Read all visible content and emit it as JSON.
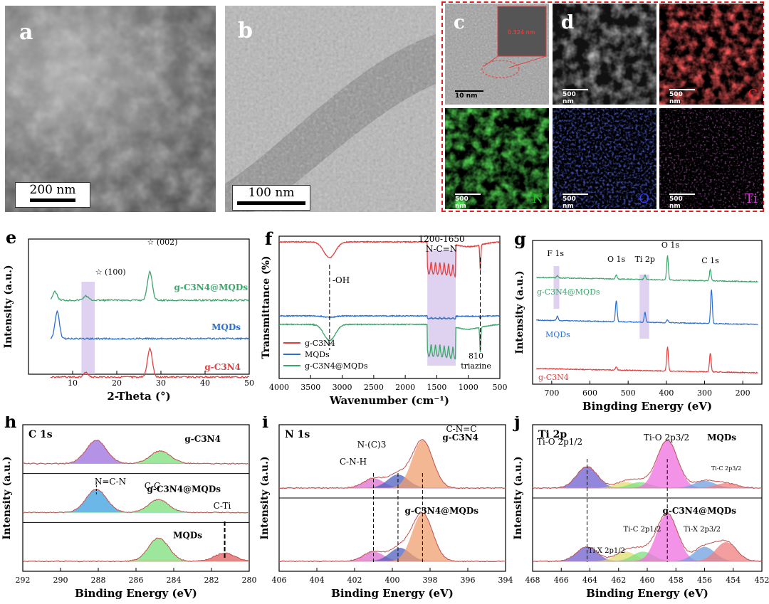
{
  "panels": {
    "a": {
      "label": "a",
      "scale": "200 nm"
    },
    "b": {
      "label": "b",
      "scale": "100 nm"
    },
    "c": {
      "label": "c",
      "scale": "10 nm",
      "lattice": "0.324 nm"
    },
    "d": {
      "label": "d",
      "scale": "500 nm"
    },
    "maps": [
      {
        "scale": "500 nm",
        "element": "C",
        "color": "#ff2020"
      },
      {
        "scale": "500 nm",
        "element": "N",
        "color": "#20c020"
      },
      {
        "scale": "500 nm",
        "element": "O",
        "color": "#3040ff"
      },
      {
        "scale": "500 nm",
        "element": "Ti",
        "color": "#d040d0"
      }
    ]
  },
  "chart_data": [
    {
      "id": "e",
      "type": "line",
      "panel_label": "e",
      "xlabel": "2-Theta (°)",
      "ylabel": "Intensity (a.u.)",
      "xlim": [
        0,
        50
      ],
      "xticks": [
        10,
        20,
        30,
        40,
        50
      ],
      "series": [
        {
          "name": "g-C3N4@MQDs",
          "color": "#3aa66a",
          "peaks": [
            [
              6,
              0.3
            ],
            [
              13,
              0.15
            ],
            [
              27.5,
              1.0
            ]
          ]
        },
        {
          "name": "MQDs",
          "color": "#2a6fd0",
          "peaks": [
            [
              6.5,
              1.0
            ]
          ]
        },
        {
          "name": "g-C3N4",
          "color": "#e04040",
          "peaks": [
            [
              13,
              0.15
            ],
            [
              27.5,
              1.0
            ]
          ]
        }
      ],
      "annotations": [
        "(100)",
        "(002)"
      ]
    },
    {
      "id": "f",
      "type": "line",
      "panel_label": "f",
      "xlabel": "Wavenumber (cm⁻¹)",
      "ylabel": "Transmittance (%)",
      "xlim": [
        4000,
        500
      ],
      "xticks": [
        4000,
        3500,
        3000,
        2500,
        2000,
        1500,
        1000,
        500
      ],
      "series": [
        {
          "name": "g-C3N4",
          "color": "#e04040"
        },
        {
          "name": "MQDs",
          "color": "#2a6fd0"
        },
        {
          "name": "g-C3N4@MQDs",
          "color": "#3aa66a"
        }
      ],
      "annotations": [
        "1200-1650",
        "N-C=N",
        "-OH",
        "810",
        "triazine"
      ]
    },
    {
      "id": "g",
      "type": "line",
      "panel_label": "g",
      "xlabel": "Bingding Energy (eV)",
      "ylabel": "Intensity (a.u.)",
      "xlim": [
        750,
        150
      ],
      "xticks": [
        700,
        600,
        500,
        400,
        300,
        200
      ],
      "series": [
        {
          "name": "g-C3N4@MQDs",
          "color": "#3aa66a"
        },
        {
          "name": "MQDs",
          "color": "#2a6fd0"
        },
        {
          "name": "g-C3N4",
          "color": "#e04040"
        }
      ],
      "annotations": [
        "F 1s",
        "O 1s",
        "Ti 2p",
        "O 1s",
        "C 1s"
      ]
    },
    {
      "id": "h",
      "type": "line",
      "panel_label": "h",
      "title": "C 1s",
      "xlabel": "Binding Energy (eV)",
      "ylabel": "Intensity (a.u.)",
      "xlim": [
        292,
        280
      ],
      "xticks": [
        292,
        290,
        288,
        286,
        284,
        282,
        280
      ],
      "series": [
        {
          "name": "g-C3N4",
          "peaks": [
            [
              288.1,
              1.0,
              "#9b6fe0"
            ],
            [
              284.7,
              0.55,
              "#7be07b"
            ]
          ]
        },
        {
          "name": "g-C3N4@MQDs",
          "peaks": [
            [
              288.1,
              1.0,
              "#3aa0e0"
            ],
            [
              284.8,
              0.55,
              "#7be07b"
            ]
          ]
        },
        {
          "name": "MQDs",
          "peaks": [
            [
              284.8,
              1.0,
              "#7be07b"
            ],
            [
              281.3,
              0.35,
              "#e06060"
            ]
          ]
        }
      ],
      "annotations": [
        "N=C-N",
        "C-C",
        "C-Ti"
      ]
    },
    {
      "id": "i",
      "type": "line",
      "panel_label": "i",
      "title": "N 1s",
      "xlabel": "Binding Energy (eV)",
      "ylabel": "Intensity (a.u.)",
      "xlim": [
        406,
        394
      ],
      "xticks": [
        406,
        404,
        402,
        400,
        398,
        396,
        394
      ],
      "series": [
        {
          "name": "g-C3N4",
          "peaks": [
            [
              401,
              0.2,
              "#e070d0"
            ],
            [
              399.7,
              0.28,
              "#5060c0"
            ],
            [
              398.4,
              1.0,
              "#f0a070"
            ]
          ]
        },
        {
          "name": "g-C3N4@MQDs",
          "peaks": [
            [
              401,
              0.2,
              "#e070d0"
            ],
            [
              399.6,
              0.28,
              "#5060c0"
            ],
            [
              398.4,
              1.0,
              "#f0a070"
            ]
          ]
        }
      ],
      "annotations": [
        "C-N-H",
        "N-(C)3",
        "C-N=C"
      ]
    },
    {
      "id": "j",
      "type": "line",
      "panel_label": "j",
      "title": "Ti 2p",
      "xlabel": "Binding Energy (eV)",
      "ylabel": "Intensity (a.u.)",
      "xlim": [
        468,
        452
      ],
      "xticks": [
        468,
        466,
        464,
        462,
        460,
        458,
        456,
        454,
        452
      ],
      "series": [
        {
          "name": "MQDs",
          "peaks": [
            [
              464.2,
              0.45,
              "#7060d0"
            ],
            [
              461.5,
              0.12,
              "#e0e070"
            ],
            [
              460.5,
              0.12,
              "#80e080"
            ],
            [
              458.6,
              1.0,
              "#f070e0"
            ],
            [
              456,
              0.15,
              "#70a0e0"
            ],
            [
              454.5,
              0.1,
              "#f08080"
            ]
          ]
        },
        {
          "name": "g-C3N4@MQDs",
          "peaks": [
            [
              464.2,
              0.3,
              "#7060d0"
            ],
            [
              461.5,
              0.2,
              "#e0e070"
            ],
            [
              460.3,
              0.2,
              "#80e080"
            ],
            [
              458.6,
              1.0,
              "#f070e0"
            ],
            [
              456,
              0.3,
              "#70a0e0"
            ],
            [
              454.5,
              0.4,
              "#f08080"
            ]
          ]
        }
      ],
      "annotations": [
        "Ti-O 2p1/2",
        "Ti-O 2p3/2",
        "Ti-C 2p3/2",
        "Ti-X 2p1/2",
        "Ti-C 2p1/2",
        "Ti-X 2p3/2"
      ]
    }
  ]
}
